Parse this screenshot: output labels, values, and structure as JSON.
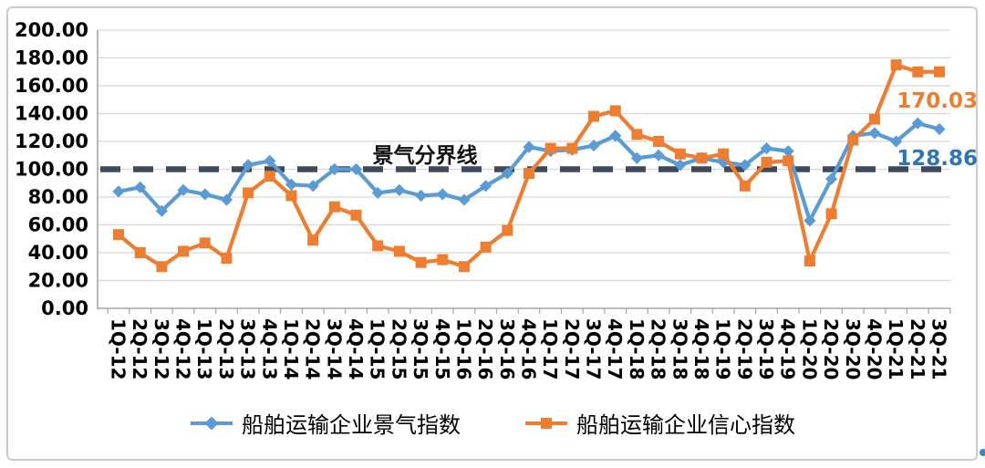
{
  "chart_data": {
    "type": "line",
    "title": "",
    "categories": [
      "1Q-12",
      "2Q-12",
      "3Q-12",
      "4Q-12",
      "1Q-13",
      "2Q-13",
      "3Q-13",
      "4Q-13",
      "1Q-14",
      "2Q-14",
      "3Q-14",
      "4Q-14",
      "1Q-15",
      "2Q-15",
      "3Q-15",
      "4Q-15",
      "1Q-16",
      "2Q-16",
      "3Q-16",
      "4Q-16",
      "1Q-17",
      "2Q-17",
      "3Q-17",
      "4Q-17",
      "1Q-18",
      "2Q-18",
      "3Q-18",
      "4Q-18",
      "1Q-19",
      "2Q-19",
      "3Q-19",
      "4Q-19",
      "1Q-20",
      "2Q-20",
      "3Q-20",
      "4Q-20",
      "1Q-21",
      "2Q-21",
      "3Q-21"
    ],
    "series": [
      {
        "name": "船舶运输企业景气指数",
        "color": "#5B9BD5",
        "marker": "diamond",
        "values": [
          84,
          87,
          70,
          85,
          82,
          78,
          103,
          106,
          89,
          88,
          100,
          100,
          83,
          85,
          81,
          82,
          78,
          88,
          97,
          116,
          113,
          114,
          117,
          124,
          108,
          110,
          103,
          108,
          105,
          103,
          115,
          113,
          63,
          93,
          124,
          126,
          120,
          133,
          128.86
        ]
      },
      {
        "name": "船舶运输企业信心指数",
        "color": "#ED7D31",
        "marker": "square",
        "values": [
          53,
          40,
          30,
          41,
          47,
          36,
          83,
          95,
          81,
          49,
          73,
          67,
          45,
          41,
          33,
          35,
          30,
          44,
          56,
          97,
          115,
          115,
          138,
          142,
          125,
          120,
          111,
          108,
          111,
          88,
          105,
          106,
          34,
          68,
          121,
          136,
          175,
          170,
          170.03
        ]
      }
    ],
    "ylim": [
      0,
      200
    ],
    "yticks": [
      0,
      20,
      40,
      60,
      80,
      100,
      120,
      140,
      160,
      180,
      200
    ],
    "ytick_labels": [
      "0.00",
      "20.00",
      "40.00",
      "60.00",
      "80.00",
      "100.00",
      "120.00",
      "140.00",
      "160.00",
      "180.00",
      "200.00"
    ],
    "grid": "horizontal",
    "legend_position": "bottom",
    "reference_line": {
      "value": 100,
      "label": "景气分界线",
      "color": "#3E4A5C",
      "style": "dashed"
    },
    "last_value_labels": [
      {
        "series": "船舶运输企业信心指数",
        "text": "170.03",
        "color": "#ED7D31"
      },
      {
        "series": "船舶运输企业景气指数",
        "text": "128.86",
        "color": "#2E75B6"
      }
    ]
  },
  "legend": {
    "items": [
      {
        "label": "船舶运输企业景气指数"
      },
      {
        "label": "船舶运输企业信心指数"
      }
    ]
  }
}
